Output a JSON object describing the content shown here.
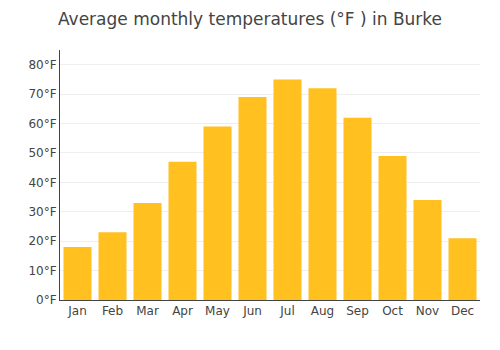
{
  "chart_data": {
    "type": "bar",
    "title": "Average monthly temperatures (°F ) in Burke",
    "categories": [
      "Jan",
      "Feb",
      "Mar",
      "Apr",
      "May",
      "Jun",
      "Jul",
      "Aug",
      "Sep",
      "Oct",
      "Nov",
      "Dec"
    ],
    "values": [
      18,
      23,
      33,
      47,
      59,
      69,
      75,
      72,
      62,
      49,
      34,
      21
    ],
    "color": "#FFC020",
    "ylim": [
      0,
      85
    ],
    "yticks": [
      {
        "value": 0,
        "label": "0°F"
      },
      {
        "value": 10,
        "label": "10°F"
      },
      {
        "value": 20,
        "label": "20°F"
      },
      {
        "value": 30,
        "label": "30°F"
      },
      {
        "value": 40,
        "label": "40°F"
      },
      {
        "value": 50,
        "label": "50°F"
      },
      {
        "value": 60,
        "label": "60°F"
      },
      {
        "value": 70,
        "label": "70°F"
      },
      {
        "value": 80,
        "label": "80°F"
      }
    ],
    "grid": true
  }
}
